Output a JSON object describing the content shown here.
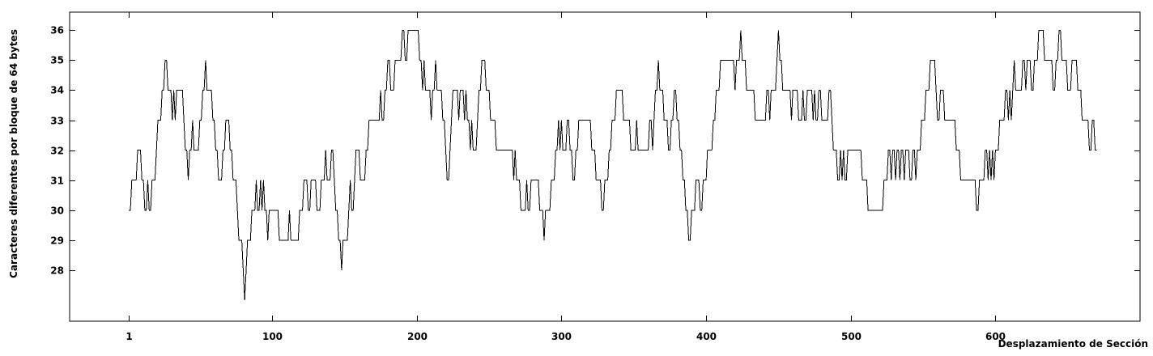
{
  "chart_data": {
    "type": "line",
    "title": "",
    "xlabel": "Desplazamiento de Sección",
    "ylabel": "Caracteres diferentes por bloque de 64 bytes",
    "xlim": [
      -40,
      700
    ],
    "ylim": [
      26.3,
      36.6
    ],
    "x_ticks": [
      1,
      100,
      200,
      300,
      400,
      500,
      600
    ],
    "y_ticks": [
      28,
      29,
      30,
      31,
      32,
      33,
      34,
      35,
      36
    ],
    "grid": false,
    "line_color": "#000000",
    "series": [
      {
        "x_start": 1,
        "values": [
          30,
          30,
          31,
          31,
          31,
          31,
          32,
          32,
          32,
          31,
          31,
          30,
          30,
          31,
          30,
          30,
          31,
          31,
          31,
          32,
          33,
          33,
          33,
          34,
          34,
          35,
          35,
          34,
          34,
          34,
          33,
          34,
          33,
          34,
          34,
          34,
          34,
          34,
          33,
          32,
          32,
          31,
          32,
          32,
          33,
          32,
          32,
          32,
          32,
          33,
          33,
          34,
          34,
          35,
          34,
          34,
          34,
          34,
          33,
          33,
          32,
          32,
          31,
          31,
          31,
          32,
          32,
          33,
          33,
          33,
          32,
          32,
          31,
          31,
          31,
          30,
          29,
          29,
          29,
          28,
          27,
          28,
          29,
          29,
          29,
          30,
          30,
          30,
          31,
          30,
          30,
          31,
          30,
          31,
          30,
          30,
          29,
          30,
          30,
          30,
          30,
          30,
          30,
          30,
          29,
          29,
          29,
          29,
          29,
          29,
          29,
          30,
          29,
          29,
          29,
          29,
          29,
          29,
          30,
          30,
          30,
          31,
          31,
          31,
          30,
          30,
          31,
          31,
          31,
          31,
          30,
          30,
          30,
          31,
          31,
          31,
          32,
          31,
          31,
          31,
          32,
          32,
          31,
          30,
          30,
          29,
          29,
          28,
          29,
          29,
          29,
          29,
          30,
          31,
          30,
          30,
          31,
          32,
          32,
          32,
          31,
          31,
          31,
          31,
          32,
          32,
          33,
          33,
          33,
          33,
          33,
          33,
          33,
          33,
          34,
          33,
          33,
          34,
          34,
          35,
          35,
          34,
          34,
          34,
          35,
          35,
          35,
          35,
          35,
          36,
          36,
          35,
          35,
          36,
          36,
          36,
          36,
          36,
          36,
          36,
          36,
          35,
          35,
          34,
          35,
          34,
          34,
          34,
          34,
          33,
          34,
          34,
          35,
          34,
          34,
          34,
          34,
          33,
          33,
          32,
          31,
          31,
          32,
          33,
          34,
          34,
          34,
          34,
          33,
          34,
          34,
          34,
          33,
          34,
          33,
          33,
          32,
          33,
          32,
          32,
          32,
          33,
          34,
          34,
          35,
          35,
          35,
          34,
          34,
          34,
          33,
          33,
          33,
          33,
          32,
          32,
          32,
          32,
          32,
          32,
          32,
          32,
          32,
          32,
          32,
          32,
          31,
          32,
          31,
          31,
          31,
          30,
          30,
          30,
          30,
          31,
          30,
          30,
          31,
          31,
          31,
          31,
          31,
          31,
          30,
          30,
          30,
          29,
          30,
          30,
          30,
          30,
          31,
          31,
          31,
          32,
          32,
          33,
          32,
          33,
          32,
          32,
          32,
          33,
          33,
          32,
          32,
          31,
          31,
          32,
          32,
          33,
          33,
          33,
          33,
          33,
          33,
          33,
          33,
          33,
          32,
          32,
          32,
          31,
          31,
          31,
          31,
          30,
          30,
          31,
          31,
          31,
          32,
          32,
          33,
          33,
          33,
          34,
          34,
          34,
          34,
          34,
          33,
          33,
          33,
          33,
          33,
          32,
          32,
          32,
          32,
          33,
          32,
          32,
          32,
          32,
          32,
          32,
          32,
          32,
          33,
          33,
          32,
          33,
          34,
          34,
          35,
          34,
          34,
          34,
          33,
          33,
          33,
          32,
          32,
          33,
          33,
          34,
          34,
          33,
          33,
          32,
          32,
          31,
          31,
          30,
          30,
          29,
          29,
          30,
          30,
          30,
          31,
          31,
          31,
          30,
          30,
          31,
          31,
          31,
          32,
          32,
          32,
          32,
          33,
          33,
          34,
          34,
          34,
          35,
          35,
          35,
          35,
          35,
          35,
          35,
          35,
          35,
          35,
          34,
          35,
          35,
          35,
          36,
          35,
          35,
          35,
          34,
          34,
          34,
          34,
          34,
          34,
          33,
          33,
          33,
          33,
          33,
          33,
          33,
          33,
          34,
          34,
          33,
          34,
          34,
          34,
          34,
          35,
          36,
          35,
          35,
          34,
          34,
          34,
          34,
          34,
          34,
          33,
          34,
          34,
          34,
          34,
          33,
          33,
          33,
          34,
          33,
          33,
          34,
          34,
          34,
          34,
          33,
          34,
          33,
          33,
          34,
          34,
          33,
          33,
          33,
          33,
          33,
          34,
          34,
          33,
          32,
          32,
          32,
          31,
          31,
          32,
          31,
          32,
          31,
          31,
          32,
          32,
          32,
          32,
          32,
          32,
          32,
          32,
          32,
          32,
          31,
          31,
          31,
          31,
          30,
          30,
          30,
          30,
          30,
          30,
          30,
          30,
          30,
          30,
          30,
          31,
          31,
          31,
          32,
          32,
          31,
          32,
          32,
          31,
          32,
          32,
          31,
          32,
          32,
          31,
          32,
          32,
          32,
          31,
          31,
          32,
          32,
          31,
          32,
          32,
          32,
          33,
          33,
          33,
          34,
          34,
          34,
          35,
          35,
          35,
          35,
          34,
          33,
          33,
          34,
          34,
          34,
          33,
          33,
          33,
          33,
          33,
          33,
          33,
          33,
          32,
          32,
          32,
          31,
          31,
          31,
          31,
          31,
          31,
          31,
          31,
          31,
          31,
          31,
          30,
          30,
          31,
          31,
          31,
          31,
          32,
          32,
          31,
          32,
          31,
          32,
          31,
          32,
          32,
          32,
          33,
          33,
          33,
          33,
          34,
          34,
          33,
          34,
          33,
          34,
          35,
          34,
          34,
          34,
          34,
          34,
          35,
          35,
          34,
          35,
          35,
          35,
          34,
          34,
          35,
          35,
          35,
          36,
          36,
          36,
          36,
          35,
          35,
          35,
          35,
          35,
          35,
          34,
          34,
          35,
          35,
          36,
          36,
          35,
          35,
          35,
          35,
          34,
          34,
          34,
          35,
          35,
          35,
          35,
          34,
          34,
          34,
          33,
          33,
          33,
          33,
          33,
          32,
          32,
          33,
          33,
          32,
          32
        ]
      }
    ]
  }
}
